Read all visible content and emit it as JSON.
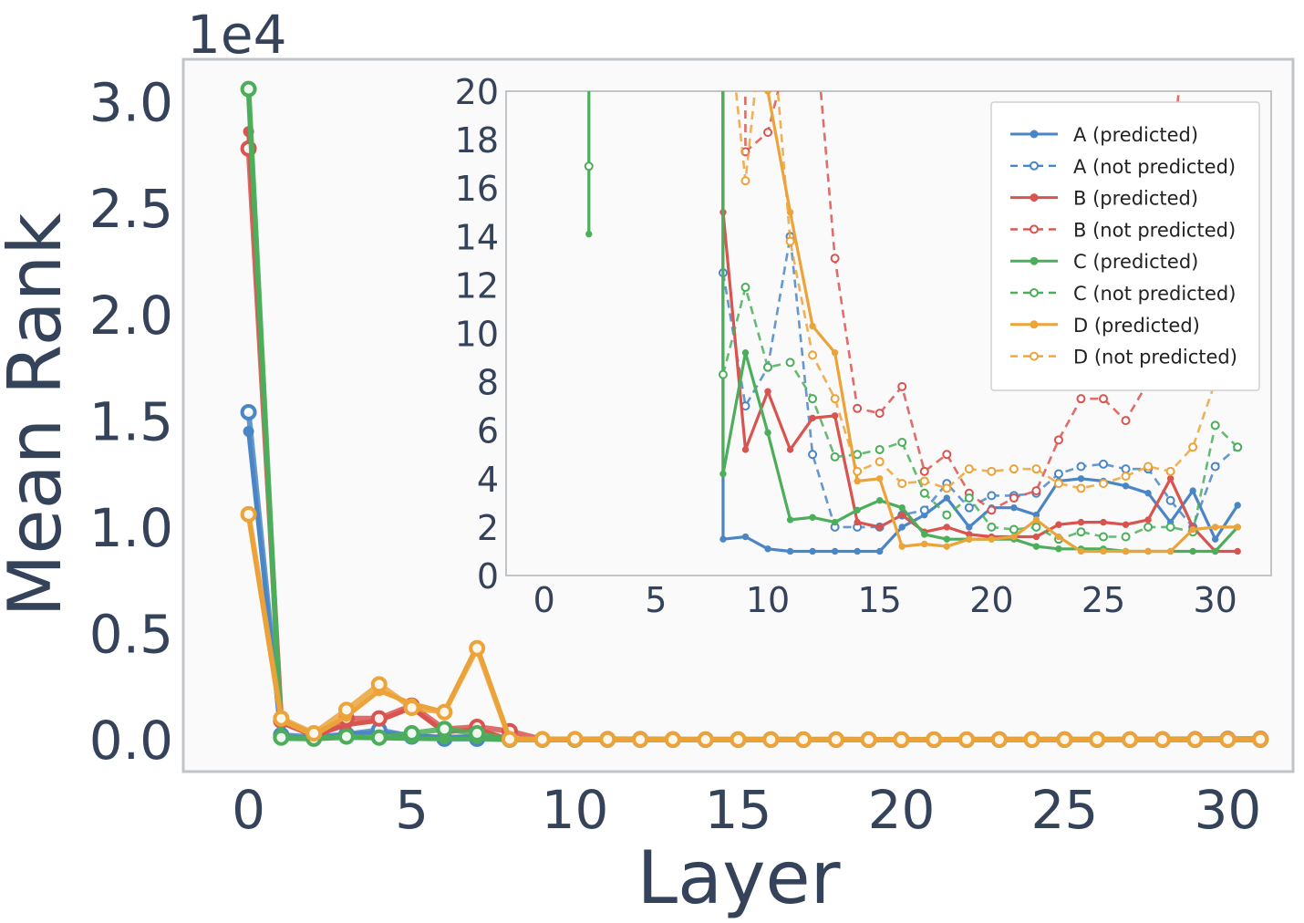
{
  "chart_data": {
    "type": "line",
    "xlabel": "Layer",
    "ylabel": "Mean Rank",
    "y_offset_label": "1e4",
    "xlim": [
      -2,
      32
    ],
    "ylim": [
      -1500,
      32000
    ],
    "xticks": [
      "0",
      "5",
      "10",
      "15",
      "20",
      "25",
      "30"
    ],
    "yticks": [
      "0.0",
      "0.5",
      "1.0",
      "1.5",
      "2.0",
      "2.5",
      "3.0"
    ],
    "grid": false,
    "colors": {
      "A": "#4a86c6",
      "B": "#d9534f",
      "C": "#4cae5b",
      "D": "#eba33a"
    },
    "x": [
      0,
      1,
      2,
      3,
      4,
      5,
      6,
      7,
      8,
      9,
      10,
      11,
      12,
      13,
      14,
      15,
      16,
      17,
      18,
      19,
      20,
      21,
      22,
      23,
      24,
      25,
      26,
      27,
      28,
      29,
      30,
      31
    ],
    "series": [
      {
        "name": "A (predicted)",
        "group": "A",
        "style": "solid",
        "values": [
          14500,
          150,
          80,
          250,
          350,
          200,
          120,
          150,
          1.5,
          1.6,
          1.1,
          1.0,
          1.0,
          1.0,
          1.0,
          1.0,
          2.0,
          2.5,
          3.2,
          2.0,
          2.8,
          2.8,
          2.5,
          3.9,
          4.0,
          3.9,
          3.7,
          3.4,
          2.2,
          3.5,
          1.5,
          2.9
        ]
      },
      {
        "name": "A (not predicted)",
        "group": "A",
        "style": "dashed",
        "values": [
          15400,
          220,
          120,
          250,
          450,
          150,
          50,
          50,
          12.5,
          7.0,
          8.6,
          14.0,
          5.0,
          2.0,
          2.0,
          2.0,
          2.5,
          2.7,
          3.8,
          2.8,
          3.3,
          3.3,
          3.4,
          4.2,
          4.5,
          4.6,
          4.4,
          4.4,
          3.1,
          2.0,
          4.5,
          5.3
        ]
      },
      {
        "name": "B (predicted)",
        "group": "B",
        "style": "solid",
        "values": [
          28600,
          800,
          180,
          700,
          900,
          1500,
          350,
          500,
          15.0,
          5.2,
          7.6,
          5.2,
          6.5,
          6.6,
          2.2,
          2.0,
          2.5,
          1.8,
          2.0,
          1.7,
          1.6,
          1.6,
          1.6,
          2.1,
          2.2,
          2.2,
          2.1,
          2.3,
          4.0,
          2.0,
          1.0,
          1.0
        ]
      },
      {
        "name": "B (not predicted)",
        "group": "B",
        "style": "dashed",
        "values": [
          27800,
          900,
          250,
          1000,
          1000,
          1600,
          500,
          600,
          400,
          17.5,
          18.3,
          22,
          24,
          13.1,
          6.9,
          6.7,
          7.8,
          4.3,
          5.0,
          3.4,
          2.7,
          3.2,
          3.5,
          5.6,
          7.3,
          7.3,
          6.4,
          8.0,
          17,
          25,
          35,
          40
        ]
      },
      {
        "name": "C (predicted)",
        "group": "C",
        "style": "solid",
        "values": [
          30500,
          50,
          30,
          100,
          80,
          50,
          30,
          50,
          4.2,
          9.2,
          5.9,
          2.3,
          2.4,
          2.2,
          2.7,
          3.1,
          2.8,
          1.7,
          1.5,
          1.5,
          1.5,
          1.5,
          1.2,
          1.1,
          1.1,
          1.1,
          1.0,
          1.0,
          1.0,
          1.0,
          1.0,
          2.0
        ]
      },
      {
        "name": "C (not predicted)",
        "group": "C",
        "style": "dashed",
        "values": [
          30600,
          100,
          50,
          150,
          100,
          300,
          500,
          300,
          8.3,
          11.9,
          8.6,
          8.8,
          7.3,
          4.9,
          5.0,
          5.2,
          5.5,
          3.4,
          2.5,
          3.2,
          2.0,
          1.9,
          2.0,
          1.5,
          1.8,
          1.6,
          1.6,
          2.0,
          2.0,
          1.8,
          6.2,
          5.3
        ]
      },
      {
        "name": "D (predicted)",
        "group": "D",
        "style": "solid",
        "values": [
          10500,
          900,
          200,
          1100,
          2300,
          1700,
          1300,
          4400,
          30,
          22,
          20,
          15,
          10.3,
          9.2,
          3.9,
          4.0,
          1.2,
          1.3,
          1.2,
          1.5,
          1.5,
          1.6,
          2.3,
          1.6,
          1.0,
          1.0,
          1.0,
          1.0,
          1.0,
          1.9,
          2.0,
          2.0
        ]
      },
      {
        "name": "D (not predicted)",
        "group": "D",
        "style": "dashed",
        "values": [
          10600,
          1000,
          300,
          1400,
          2600,
          1500,
          1300,
          4300,
          25,
          16.3,
          25,
          13.8,
          9.1,
          7.3,
          4.3,
          4.7,
          3.8,
          3.9,
          3.6,
          4.4,
          4.3,
          4.4,
          4.4,
          3.8,
          3.6,
          3.8,
          4.1,
          4.5,
          4.3,
          5.3,
          8.0,
          19.0
        ]
      }
    ],
    "inset": {
      "xlim": [
        -1.7,
        32.5
      ],
      "ylim": [
        0,
        20
      ],
      "xticks": [
        "0",
        "5",
        "10",
        "15",
        "20",
        "25",
        "30"
      ],
      "yticks": [
        "0",
        "2",
        "4",
        "6",
        "8",
        "10",
        "12",
        "14",
        "16",
        "18",
        "20"
      ],
      "legend_position": "top-right",
      "inset_extra": {
        "C (predicted)": {
          "x": [
            2,
            2
          ],
          "values": [
            14.1,
            25
          ]
        },
        "C (not predicted)": {
          "x": [
            2
          ],
          "values": [
            16.9
          ]
        }
      }
    }
  }
}
